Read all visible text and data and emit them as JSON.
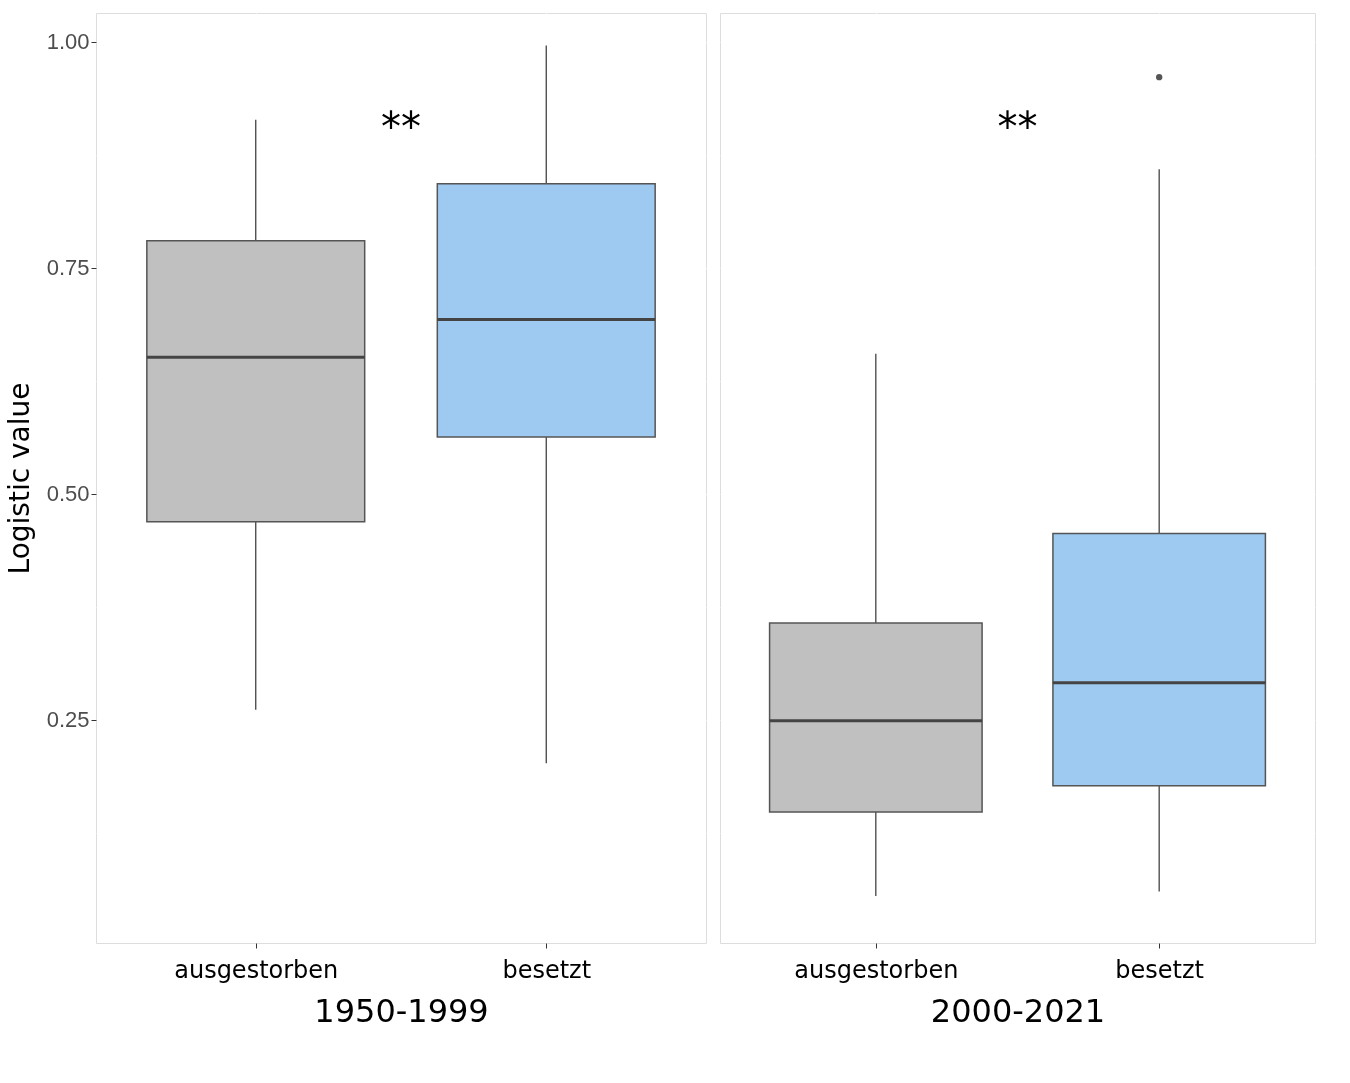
{
  "chart_data": [
    {
      "type": "box",
      "xlabel": "1950-1999",
      "ylabel": "Logistic value",
      "categories": [
        "ausgestorben",
        "besetzt"
      ],
      "colors": [
        "#c0c0c0",
        "#9ec9f0"
      ],
      "boxes": [
        {
          "low": 0.261,
          "q1": 0.469,
          "median": 0.651,
          "q3": 0.78,
          "high": 0.914
        },
        {
          "low": 0.202,
          "q1": 0.563,
          "median": 0.693,
          "q3": 0.843,
          "high": 0.996
        }
      ],
      "ylim": [
        0.003,
        1.032
      ],
      "yticks": [
        {
          "value": 0.125,
          "label": null
        },
        {
          "value": 0.25,
          "label": "0.25"
        },
        {
          "value": 0.375,
          "label": null
        },
        {
          "value": 0.5,
          "label": "0.50"
        },
        {
          "value": 0.625,
          "label": null
        },
        {
          "value": 0.75,
          "label": "0.75"
        },
        {
          "value": 0.875,
          "label": null
        },
        {
          "value": 1.0,
          "label": "1.00"
        }
      ],
      "grid": true,
      "annotations": [
        "**"
      ]
    },
    {
      "type": "box",
      "xlabel": "2000-2021",
      "categories": [
        "ausgestorben",
        "besetzt"
      ],
      "colors": [
        "#c0c0c0",
        "#9ec9f0"
      ],
      "boxes": [
        {
          "low": 0.055,
          "q1": 0.148,
          "median": 0.249,
          "q3": 0.357,
          "high": 0.655
        },
        {
          "low": 0.06,
          "q1": 0.177,
          "median": 0.291,
          "q3": 0.456,
          "high": 0.859,
          "outliers": [
            0.961
          ]
        }
      ],
      "ylim": [
        0.003,
        1.032
      ],
      "yticks": [
        {
          "value": 0.125,
          "label": null
        },
        {
          "value": 0.25,
          "label": null
        },
        {
          "value": 0.375,
          "label": null
        },
        {
          "value": 0.5,
          "label": null
        },
        {
          "value": 0.625,
          "label": null
        },
        {
          "value": 0.75,
          "label": null
        },
        {
          "value": 0.875,
          "label": null
        },
        {
          "value": 1.0,
          "label": null
        }
      ],
      "tick_labels": "x",
      "grid": true,
      "annotations": [
        "**"
      ]
    }
  ]
}
